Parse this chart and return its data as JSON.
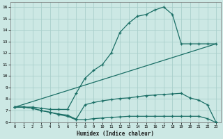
{
  "xlabel": "Humidex (Indice chaleur)",
  "bg_color": "#cce8e4",
  "grid_color": "#aacfcb",
  "line_color": "#1a6e65",
  "xlim": [
    -0.5,
    23.5
  ],
  "ylim": [
    6,
    16.4
  ],
  "xticks": [
    0,
    1,
    2,
    3,
    4,
    5,
    6,
    7,
    8,
    9,
    10,
    11,
    12,
    13,
    14,
    15,
    16,
    17,
    18,
    19,
    20,
    21,
    22,
    23
  ],
  "yticks": [
    6,
    7,
    8,
    9,
    10,
    11,
    12,
    13,
    14,
    15,
    16
  ],
  "curve1_x": [
    0,
    1,
    2,
    3,
    4,
    5,
    6,
    7,
    8,
    9,
    10,
    11,
    12,
    13,
    14,
    15,
    16,
    17,
    18,
    19,
    20,
    21,
    22,
    23
  ],
  "curve1_y": [
    7.3,
    7.3,
    7.3,
    7.2,
    7.1,
    7.1,
    7.1,
    8.5,
    9.8,
    10.5,
    11.0,
    12.0,
    13.8,
    14.6,
    15.2,
    15.35,
    15.75,
    16.0,
    15.35,
    12.8,
    12.8,
    12.8,
    12.8,
    12.8
  ],
  "curve2_x": [
    0,
    1,
    2,
    3,
    4,
    5,
    6,
    7,
    8,
    9,
    10,
    11,
    12,
    13,
    14,
    15,
    16,
    17,
    18,
    19,
    20,
    21,
    22,
    23
  ],
  "curve2_y": [
    7.3,
    7.3,
    7.2,
    7.0,
    6.85,
    6.65,
    6.5,
    6.2,
    6.2,
    6.3,
    6.35,
    6.4,
    6.45,
    6.5,
    6.5,
    6.5,
    6.5,
    6.5,
    6.5,
    6.5,
    6.5,
    6.5,
    6.3,
    5.95
  ],
  "curve3_x": [
    0,
    1,
    2,
    3,
    4,
    5,
    6,
    7,
    8,
    9,
    10,
    11,
    12,
    13,
    14,
    15,
    16,
    17,
    18,
    19,
    20,
    21,
    22,
    23
  ],
  "curve3_y": [
    7.3,
    7.3,
    7.2,
    7.0,
    6.85,
    6.7,
    6.6,
    6.25,
    7.5,
    7.7,
    7.85,
    7.95,
    8.05,
    8.1,
    8.2,
    8.3,
    8.35,
    8.4,
    8.45,
    8.5,
    8.1,
    7.9,
    7.5,
    5.95
  ],
  "curve4_x": [
    0,
    23
  ],
  "curve4_y": [
    7.3,
    12.8
  ]
}
